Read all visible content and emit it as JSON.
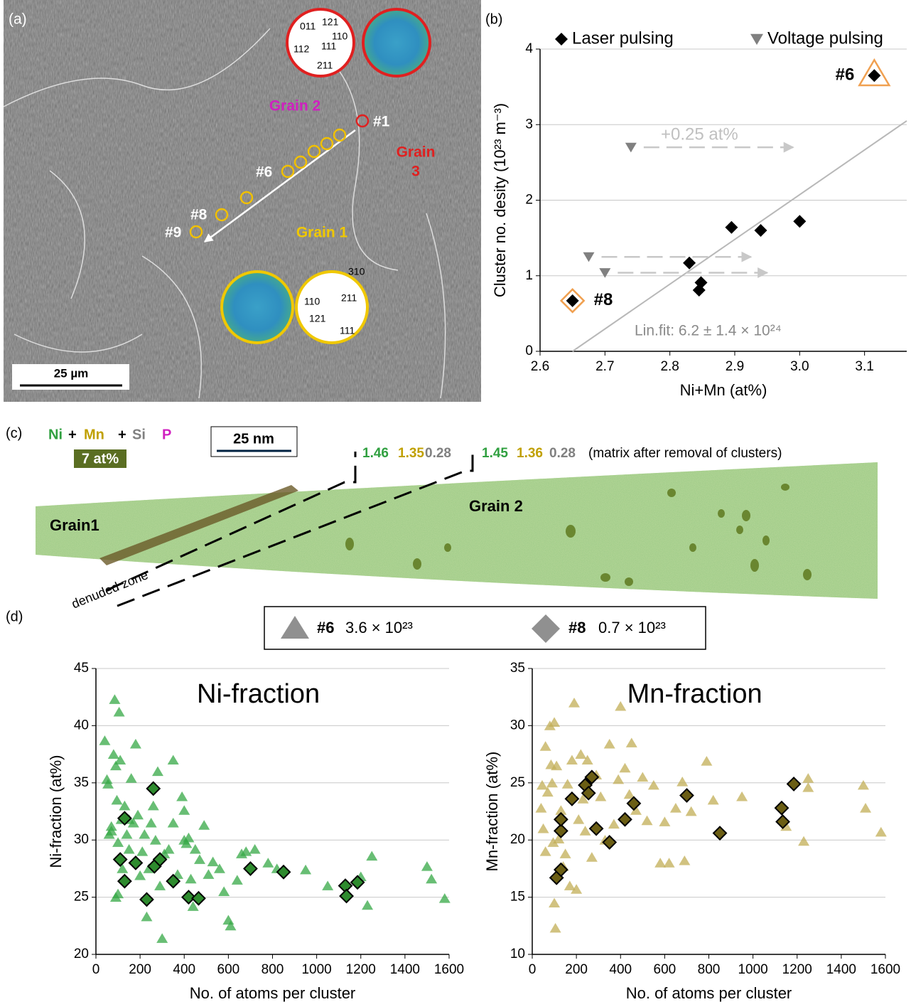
{
  "panel_a": {
    "label": "(a)",
    "grain_2": "Grain 2",
    "grain_3": [
      "Grain",
      "3"
    ],
    "grain_1": "Grain 1",
    "points": [
      "#1",
      "#6",
      "#8",
      "#9"
    ],
    "scale_bar": "25 µm",
    "pole_red": [
      "011",
      "121",
      "110",
      "112",
      "111",
      "211"
    ],
    "pole_yellow": [
      "310",
      "110",
      "211",
      "121",
      "111"
    ]
  },
  "chart_data": [
    {
      "type": "scatter",
      "label": "(b)",
      "x_label": "Ni+Mn (at%)",
      "y_label": "Cluster no. desity (10²³ m⁻³)",
      "xlim": [
        2.6,
        3.165
      ],
      "xticks": [
        2.6,
        2.7,
        2.8,
        2.9,
        {
          "value": 3,
          "label": "3.0"
        },
        3.1
      ],
      "ylim": [
        0,
        4
      ],
      "yticks": [
        0,
        1,
        2,
        3,
        4
      ],
      "grid": true,
      "legend": "top",
      "series": [
        {
          "name": "Laser pulsing",
          "marker": "diamond",
          "color": "#000000",
          "x": [
            2.65,
            2.83,
            2.845,
            2.848,
            2.895,
            2.94,
            3.0,
            3.115
          ],
          "values": [
            0.67,
            1.17,
            0.81,
            0.91,
            1.64,
            1.6,
            1.72,
            3.65
          ]
        },
        {
          "name": "Voltage pulsing",
          "marker": "triangle-down",
          "color": "#808080",
          "x": [
            2.675,
            2.7,
            2.74
          ],
          "values": [
            1.25,
            1.04,
            2.7
          ]
        }
      ],
      "shift": {
        "text": "+0.25 at%",
        "value": 0.25
      },
      "fit": {
        "text": "Lin.fit: 6.2 ± 1.4 × 10²⁴",
        "x": [
          2.65,
          3.165
        ],
        "y": [
          0,
          3.05
        ]
      },
      "annotations": [
        {
          "text": "#6",
          "x": 3.115,
          "y": 3.65
        },
        {
          "text": "#8",
          "x": 2.65,
          "y": 0.67
        }
      ]
    },
    {
      "type": "scatter",
      "title": "Ni-fraction",
      "x_label": "No. of atoms per cluster",
      "y_label": "Ni-fraction (at%)",
      "xlim": [
        0,
        1600
      ],
      "xticks": [
        0,
        200,
        400,
        600,
        800,
        1000,
        1200,
        1400,
        1600
      ],
      "ylim": [
        20,
        45
      ],
      "yticks": [
        20,
        25,
        30,
        35,
        40,
        45
      ],
      "grid": true,
      "series": [
        {
          "marker": "triangle",
          "color": "#35a846",
          "x": [
            40,
            50,
            55,
            60,
            70,
            80,
            85,
            90,
            95,
            100,
            100,
            105,
            110,
            115,
            120,
            130,
            140,
            150,
            160,
            170,
            180,
            190,
            200,
            210,
            220,
            230,
            240,
            250,
            260,
            270,
            280,
            290,
            300,
            310,
            330,
            350,
            370,
            390,
            400,
            410,
            420,
            430,
            440,
            450,
            470,
            490,
            510,
            530,
            560,
            580,
            600,
            610,
            640,
            660,
            680,
            720,
            780,
            820,
            950,
            1050,
            1200,
            1250,
            1230,
            1500,
            1520,
            1580,
            400,
            350,
            150,
            70,
            90
          ],
          "values": [
            38.7,
            35.3,
            34.9,
            30.5,
            31.2,
            37.5,
            42.3,
            36.5,
            33.5,
            25.3,
            29.8,
            41.2,
            37.0,
            31.8,
            27.5,
            33.0,
            30.5,
            29.2,
            35.4,
            31.5,
            38.4,
            32.2,
            26.9,
            29.0,
            30.5,
            23.3,
            27.5,
            31.5,
            33.0,
            30.0,
            36.0,
            26.0,
            21.4,
            28.8,
            29.2,
            31.5,
            27.0,
            33.8,
            30.0,
            29.7,
            30.2,
            26.6,
            24.2,
            29.2,
            28.3,
            31.3,
            27.0,
            28.1,
            27.5,
            25.5,
            23.0,
            22.5,
            26.5,
            28.8,
            29.0,
            29.2,
            28.0,
            27.5,
            27.4,
            26.0,
            26.8,
            28.6,
            24.3,
            27.7,
            26.6,
            24.9,
            32.6,
            37.0,
            31.8,
            30.8,
            25.0
          ]
        },
        {
          "marker": "diamond",
          "color": "#2e8b2e",
          "x": [
            130,
            110,
            130,
            180,
            230,
            260,
            265,
            290,
            350,
            420,
            465,
            700,
            850,
            1130,
            1135,
            1185
          ],
          "values": [
            31.9,
            28.3,
            26.4,
            28.0,
            24.8,
            34.5,
            27.7,
            28.3,
            26.4,
            25.0,
            24.9,
            27.5,
            27.2,
            26.0,
            25.1,
            26.3
          ]
        }
      ]
    },
    {
      "type": "scatter",
      "title": "Mn-fraction",
      "x_label": "No. of atoms per cluster",
      "y_label": "Mn-fraction (at%)",
      "xlim": [
        0,
        1600
      ],
      "xticks": [
        0,
        200,
        400,
        600,
        800,
        1000,
        1200,
        1400,
        1600
      ],
      "ylim": [
        10,
        35
      ],
      "yticks": [
        10,
        15,
        20,
        25,
        30,
        35
      ],
      "grid": true,
      "series": [
        {
          "marker": "triangle",
          "color": "#c2ad55",
          "x": [
            40,
            50,
            60,
            70,
            80,
            85,
            90,
            95,
            100,
            105,
            100,
            110,
            120,
            130,
            140,
            150,
            160,
            170,
            180,
            190,
            200,
            210,
            220,
            230,
            240,
            250,
            270,
            290,
            310,
            330,
            350,
            370,
            390,
            400,
            420,
            440,
            450,
            470,
            500,
            520,
            550,
            580,
            600,
            620,
            650,
            680,
            690,
            720,
            790,
            820,
            950,
            1150,
            1230,
            1250,
            1250,
            1500,
            1510,
            1580,
            60,
            45
          ],
          "values": [
            22.8,
            21.0,
            19.0,
            24.2,
            30.0,
            26.6,
            25.0,
            19.8,
            30.3,
            12.3,
            14.5,
            26.5,
            20.1,
            22.6,
            17.7,
            18.8,
            24.9,
            16.0,
            27.0,
            32.0,
            15.7,
            21.8,
            27.5,
            23.6,
            20.8,
            27.0,
            18.5,
            25.7,
            23.8,
            20.0,
            28.4,
            21.4,
            25.3,
            31.7,
            26.3,
            24.0,
            28.5,
            22.6,
            25.5,
            21.7,
            24.8,
            18.0,
            21.6,
            18.0,
            22.8,
            25.1,
            18.2,
            22.5,
            26.9,
            23.5,
            23.8,
            21.2,
            19.9,
            25.4,
            24.6,
            24.8,
            22.8,
            20.7,
            28.2,
            24.8
          ]
        },
        {
          "marker": "diamond",
          "color": "#6b5e14",
          "x": [
            110,
            130,
            130,
            130,
            180,
            240,
            255,
            270,
            290,
            350,
            420,
            460,
            700,
            850,
            1130,
            1135,
            1185
          ],
          "values": [
            16.7,
            17.4,
            20.8,
            21.8,
            23.6,
            24.8,
            24.1,
            25.5,
            21.0,
            19.8,
            21.8,
            23.2,
            23.9,
            20.6,
            22.8,
            21.6,
            24.9
          ]
        }
      ]
    }
  ],
  "panel_c": {
    "label": "(c)",
    "species": [
      "Ni",
      "+",
      "Mn",
      "+",
      "Si",
      "P"
    ],
    "iso": "7 at%",
    "scale_bar": "25 nm",
    "comp_1": [
      "1.46",
      "1.35",
      "0.28"
    ],
    "comp_2": [
      "1.45",
      "1.36",
      "0.28"
    ],
    "note": "(matrix after removal of clusters)",
    "grain_1": "Grain1",
    "grain_2": "Grain 2",
    "zone": "denuded zone"
  },
  "panel_d": {
    "label": "(d)",
    "legend": [
      {
        "name": "#6",
        "text": "3.6 × 10²³"
      },
      {
        "name": "#8",
        "text": "0.7 × 10²³"
      }
    ]
  }
}
